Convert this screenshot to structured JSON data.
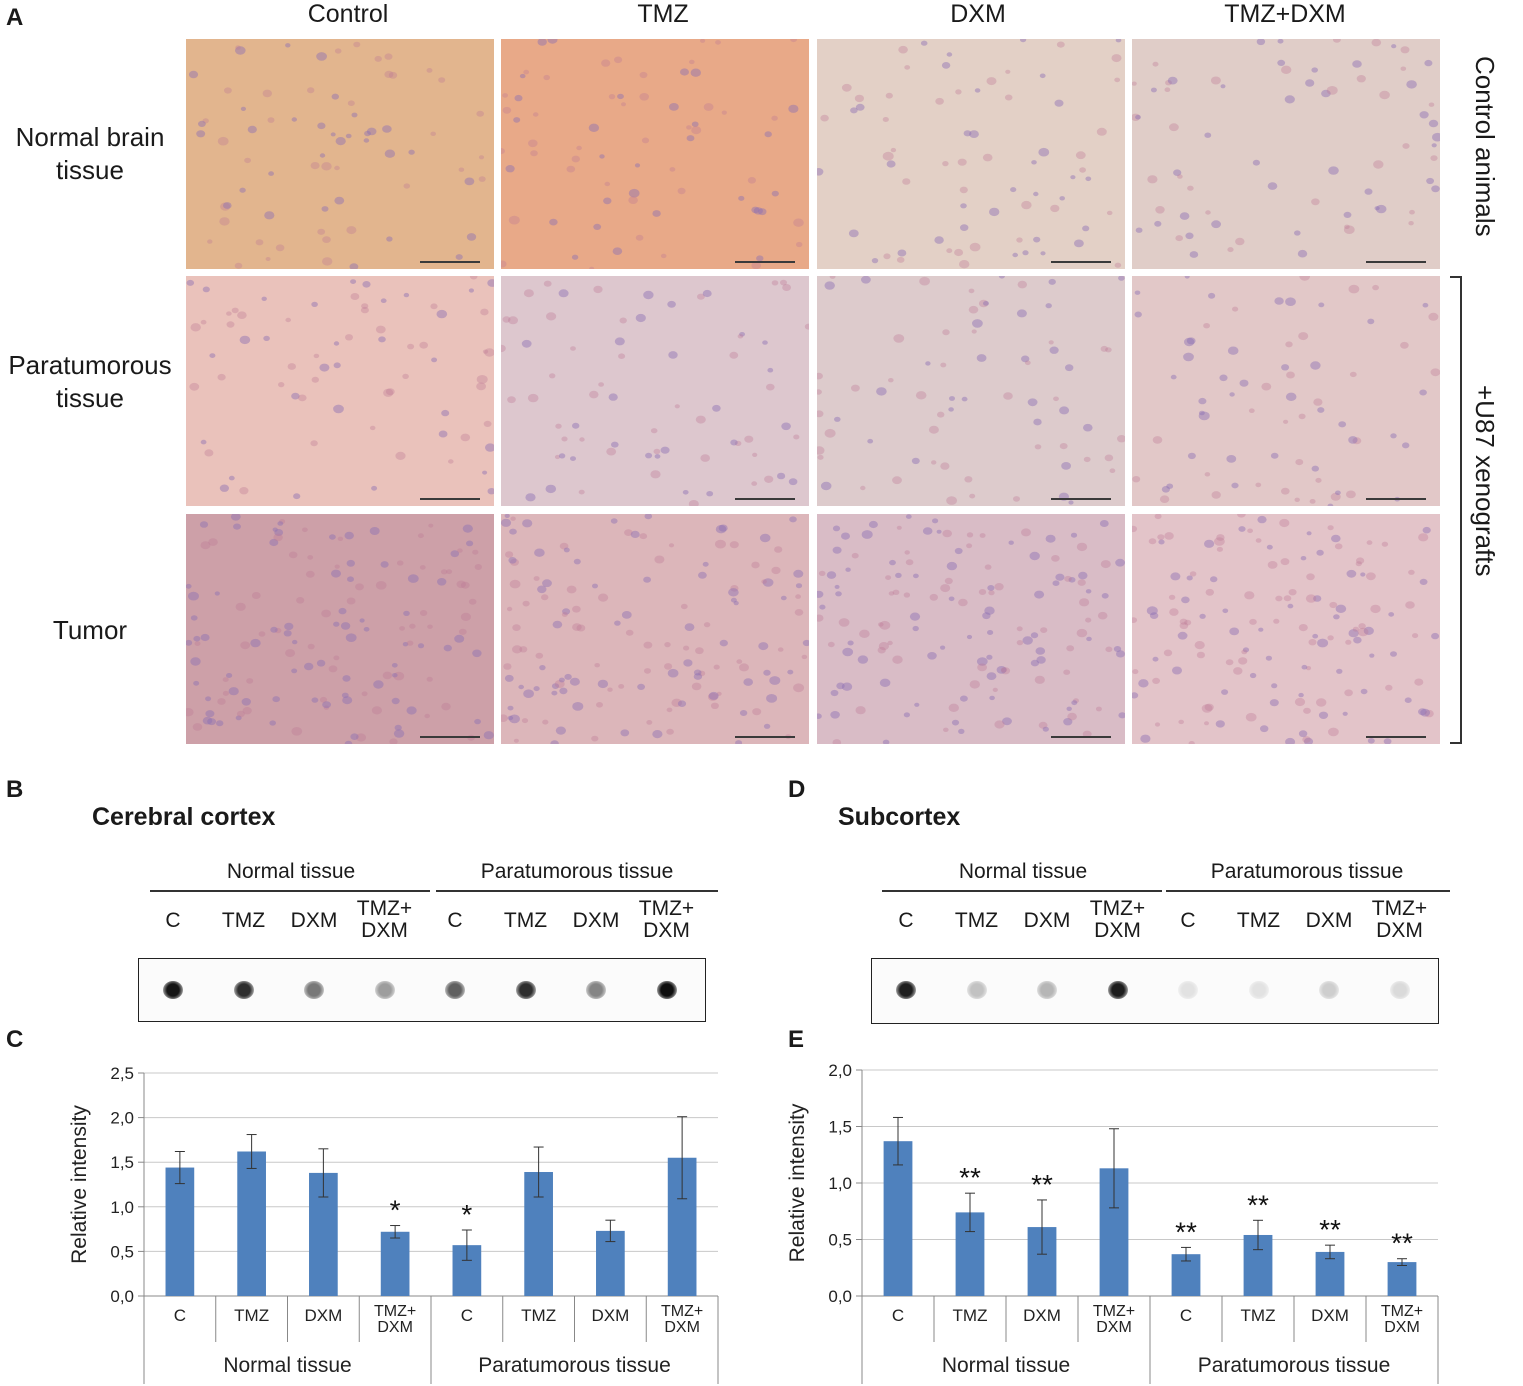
{
  "panels": {
    "A": "A",
    "B": "B",
    "C": "C",
    "D": "D",
    "E": "E"
  },
  "panel_a": {
    "columns": [
      "Control",
      "TMZ",
      "DXM",
      "TMZ+DXM"
    ],
    "rows": [
      {
        "label_lines": [
          "Normal brain",
          "tissue"
        ]
      },
      {
        "label_lines": [
          "Paratumorous",
          "tissue"
        ]
      },
      {
        "label_lines": [
          "Tumor"
        ]
      }
    ],
    "right_labels": [
      "Control animals",
      "+U87 xenografts"
    ],
    "tile_colors": [
      [
        "#e2b58e",
        "#e8a988",
        "#e3d0c6",
        "#e0cdc8"
      ],
      [
        "#eac2bb",
        "#ddc7ce",
        "#ddcbcc",
        "#e2c8c8"
      ],
      [
        "#cda0a8",
        "#dcb6ba",
        "#d9bcc6",
        "#e3c4c9"
      ]
    ]
  },
  "panel_b": {
    "title": "Cerebral cortex",
    "groups": [
      "Normal tissue",
      "Paratumorous tissue"
    ],
    "lanes": [
      [
        "C"
      ],
      [
        "TMZ"
      ],
      [
        "DXM"
      ],
      [
        "TMZ+",
        "DXM"
      ],
      [
        "C"
      ],
      [
        "TMZ"
      ],
      [
        "DXM"
      ],
      [
        "TMZ+",
        "DXM"
      ]
    ],
    "dot_intensity": [
      0.95,
      0.85,
      0.55,
      0.4,
      0.65,
      0.85,
      0.5,
      0.98
    ]
  },
  "panel_d": {
    "title": "Subcortex",
    "groups": [
      "Normal tissue",
      "Paratumorous tissue"
    ],
    "lanes": [
      [
        "C"
      ],
      [
        "TMZ"
      ],
      [
        "DXM"
      ],
      [
        "TMZ+",
        "DXM"
      ],
      [
        "C"
      ],
      [
        "TMZ"
      ],
      [
        "DXM"
      ],
      [
        "TMZ+",
        "DXM"
      ]
    ],
    "dot_intensity": [
      0.92,
      0.25,
      0.3,
      0.92,
      0.12,
      0.12,
      0.2,
      0.15
    ]
  },
  "chart_data": [
    {
      "type": "bar",
      "ylabel": "Relative intensity",
      "ylim": [
        0,
        2.5
      ],
      "yticks": [
        "0,0",
        "0,5",
        "1,0",
        "1,5",
        "2,0",
        "2,5"
      ],
      "categories": [
        [
          "C"
        ],
        [
          "TMZ"
        ],
        [
          "DXM"
        ],
        [
          "TMZ+",
          "DXM"
        ],
        [
          "C"
        ],
        [
          "TMZ"
        ],
        [
          "DXM"
        ],
        [
          "TMZ+",
          "DXM"
        ]
      ],
      "groups": [
        "Normal tissue",
        "Paratumorous tissue"
      ],
      "values": [
        1.44,
        1.62,
        1.38,
        0.72,
        0.57,
        1.39,
        0.73,
        1.55
      ],
      "errors": [
        0.18,
        0.19,
        0.27,
        0.07,
        0.17,
        0.28,
        0.12,
        0.46
      ],
      "significance": [
        "",
        "",
        "",
        "*",
        "*",
        "",
        "",
        ""
      ],
      "bar_color": "#4f81bd",
      "grid": true
    },
    {
      "type": "bar",
      "ylabel": "Relative intensity",
      "ylim": [
        0,
        2.0
      ],
      "yticks": [
        "0,0",
        "0,5",
        "1,0",
        "1,5",
        "2,0"
      ],
      "categories": [
        [
          "C"
        ],
        [
          "TMZ"
        ],
        [
          "DXM"
        ],
        [
          "TMZ+",
          "DXM"
        ],
        [
          "C"
        ],
        [
          "TMZ"
        ],
        [
          "DXM"
        ],
        [
          "TMZ+",
          "DXM"
        ]
      ],
      "groups": [
        "Normal tissue",
        "Paratumorous tissue"
      ],
      "values": [
        1.37,
        0.74,
        0.61,
        1.13,
        0.37,
        0.54,
        0.39,
        0.3
      ],
      "errors": [
        0.21,
        0.17,
        0.24,
        0.35,
        0.06,
        0.13,
        0.06,
        0.03
      ],
      "significance": [
        "",
        "**",
        "**",
        "",
        "**",
        "**",
        "**",
        "**"
      ],
      "bar_color": "#4f81bd",
      "grid": true
    }
  ]
}
